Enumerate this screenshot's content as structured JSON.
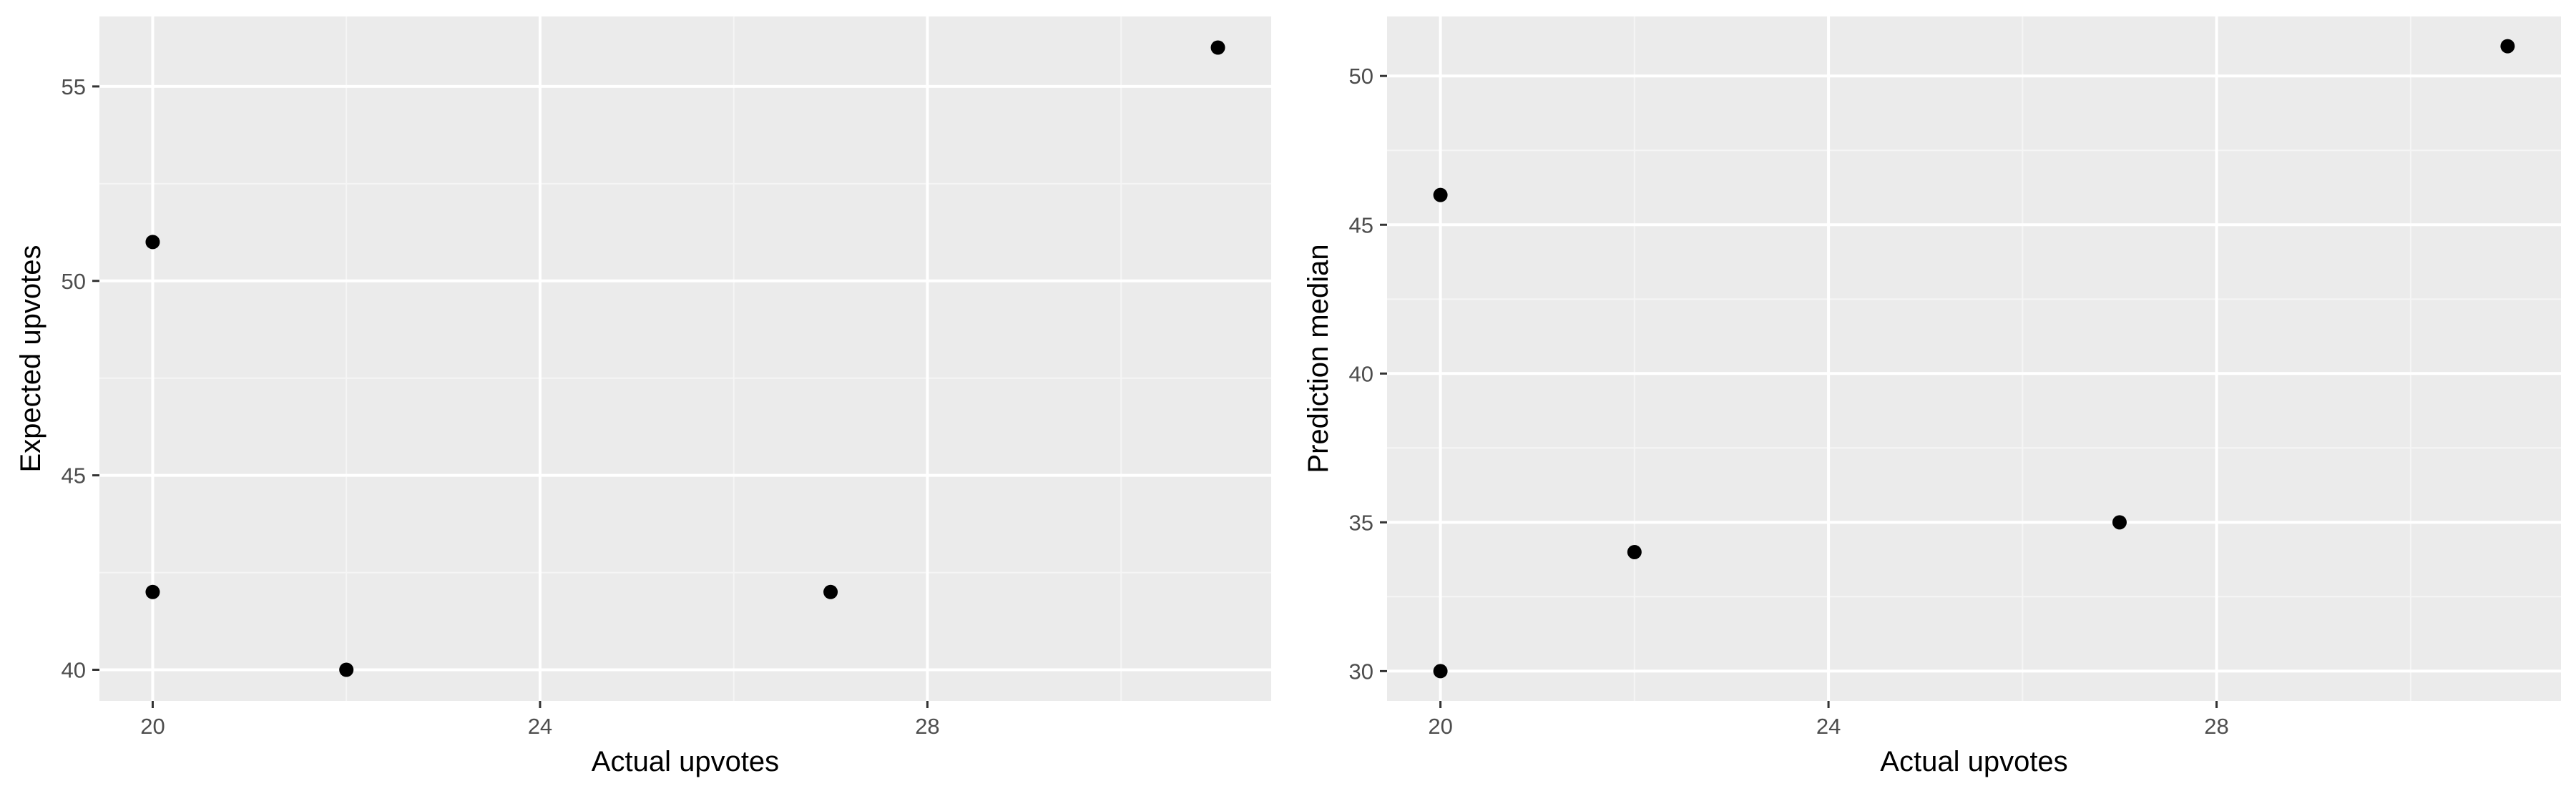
{
  "colors": {
    "panel_bg": "#EBEBEB",
    "grid_major": "#FFFFFF",
    "grid_minor": "#F5F5F5",
    "tick_text": "#4D4D4D",
    "axis_title": "#000000",
    "point": "#000000"
  },
  "chart_data": [
    {
      "type": "scatter",
      "title": "",
      "xlabel": "Actual upvotes",
      "ylabel": "Expected upvotes",
      "xlim": [
        19.45,
        31.55
      ],
      "ylim": [
        39.2,
        56.8
      ],
      "xticks": [
        20,
        24,
        28
      ],
      "yticks": [
        40,
        45,
        50,
        55
      ],
      "grid": true,
      "points": [
        {
          "x": 20,
          "y": 51
        },
        {
          "x": 20,
          "y": 42
        },
        {
          "x": 22,
          "y": 40
        },
        {
          "x": 27,
          "y": 42
        },
        {
          "x": 31,
          "y": 56
        }
      ]
    },
    {
      "type": "scatter",
      "title": "",
      "xlabel": "Actual upvotes",
      "ylabel": "Prediction median",
      "xlim": [
        19.45,
        31.55
      ],
      "ylim": [
        29.0,
        52.0
      ],
      "xticks": [
        20,
        24,
        28
      ],
      "yticks": [
        30,
        35,
        40,
        45,
        50
      ],
      "grid": true,
      "points": [
        {
          "x": 20,
          "y": 46
        },
        {
          "x": 20,
          "y": 30
        },
        {
          "x": 22,
          "y": 34
        },
        {
          "x": 27,
          "y": 35
        },
        {
          "x": 31,
          "y": 51
        }
      ]
    }
  ]
}
